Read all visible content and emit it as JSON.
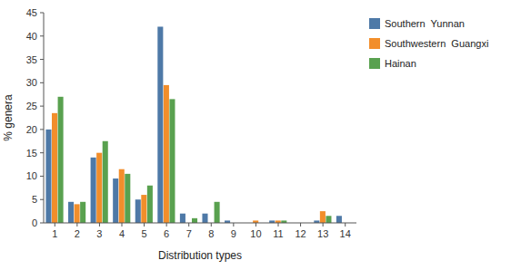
{
  "chart_data": {
    "type": "bar",
    "categories": [
      1,
      2,
      3,
      4,
      5,
      6,
      7,
      8,
      9,
      10,
      11,
      12,
      13,
      14
    ],
    "series": [
      {
        "name": "Southern  Yunnan",
        "values": [
          20,
          4.5,
          14,
          9.5,
          5,
          42,
          2,
          2,
          0.5,
          0,
          0.5,
          0,
          0.5,
          1.5
        ]
      },
      {
        "name": "Southwestern  Guangxi",
        "values": [
          23.5,
          4,
          15,
          11.5,
          6,
          29.5,
          0,
          0,
          0,
          0.5,
          0.5,
          0,
          2.5,
          0
        ]
      },
      {
        "name": "Hainan",
        "values": [
          27,
          4.5,
          17.5,
          10.5,
          8,
          26.5,
          1,
          4.5,
          0,
          0,
          0.5,
          0,
          1.5,
          0
        ]
      }
    ],
    "xlabel": "Distribution types",
    "ylabel": "% genera",
    "ylim": [
      0,
      45
    ],
    "yticks": [
      0,
      5,
      10,
      15,
      20,
      25,
      30,
      35,
      40,
      45
    ],
    "grid": false
  }
}
